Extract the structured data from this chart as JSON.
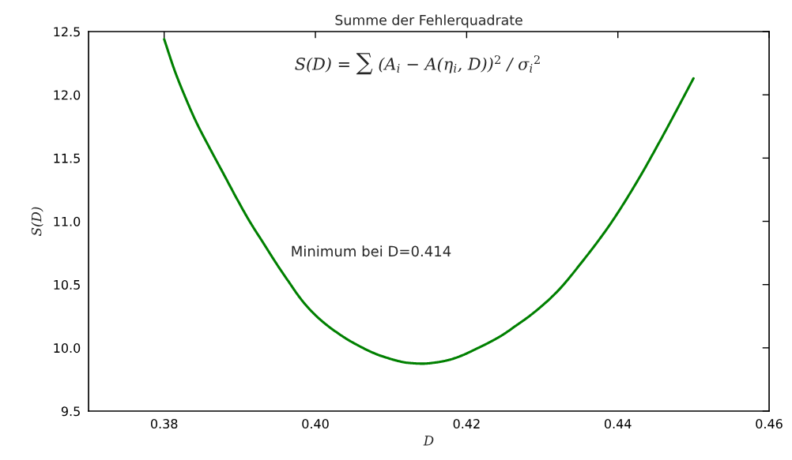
{
  "chart_data": {
    "type": "line",
    "title": "Summe der Fehlerquadrate",
    "xlabel": "D",
    "ylabel": "S(D)",
    "annotations": [
      "S(D) = ∑ (A$_{i}$ − A(η$_{i}$, D))$^{2}$ / σ$_{i}$$^{2}$",
      "Minimum bei D=0.414"
    ],
    "series": [
      {
        "color": "#008000",
        "line_style": "solid",
        "x": [
          0.38,
          0.3814,
          0.3828,
          0.3842,
          0.3861,
          0.3879,
          0.3896,
          0.3913,
          0.3931,
          0.3948,
          0.3965,
          0.3979,
          0.399,
          0.4007,
          0.4024,
          0.405,
          0.409,
          0.4125,
          0.4142,
          0.416,
          0.4177,
          0.4194,
          0.4212,
          0.4229,
          0.4247,
          0.4264,
          0.4285,
          0.4319,
          0.4354,
          0.4389,
          0.4424,
          0.4458,
          0.45
        ],
        "values": [
          12.44,
          12.19,
          11.98,
          11.79,
          11.57,
          11.37,
          11.18,
          11.0,
          10.83,
          10.67,
          10.52,
          10.4,
          10.32,
          10.22,
          10.14,
          10.04,
          9.93,
          9.88,
          9.875,
          9.885,
          9.905,
          9.94,
          9.99,
          10.04,
          10.1,
          10.17,
          10.26,
          10.44,
          10.69,
          10.97,
          11.3,
          11.66,
          12.13
        ]
      }
    ],
    "xlim": [
      0.37,
      0.46
    ],
    "ylim": [
      9.5,
      12.5
    ],
    "xticks": [
      0.38,
      {
        "value": 0.4,
        "label": "0.40"
      },
      0.42,
      0.44,
      0.46
    ],
    "yticks": [
      9.5,
      {
        "value": 10.0,
        "label": "10.0"
      },
      10.5,
      {
        "value": 11.0,
        "label": "11.0"
      },
      11.5,
      {
        "value": 12.0,
        "label": "12.0"
      },
      12.5
    ],
    "grid": false,
    "legend": false
  }
}
